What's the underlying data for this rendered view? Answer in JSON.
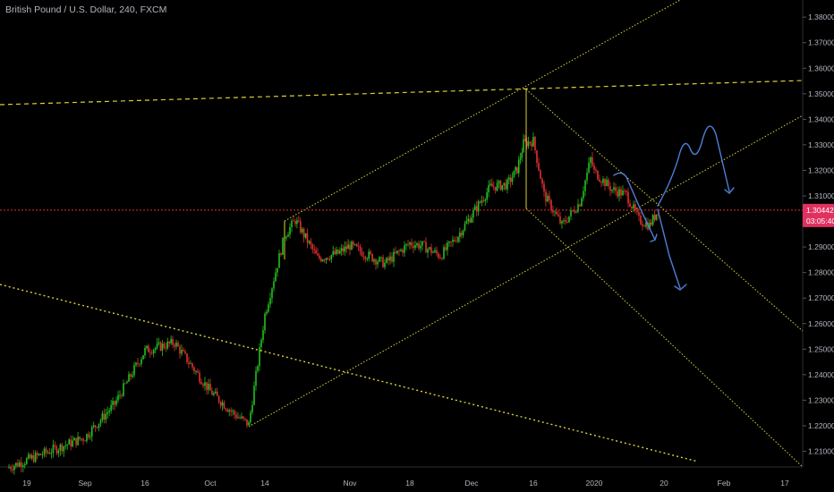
{
  "header": {
    "symbol_title": "British Pound / U.S. Dollar, 240, FXCM"
  },
  "colors": {
    "background": "#000000",
    "up_candle": "#22c11f",
    "down_candle": "#e0312f",
    "trendline": "#d8d23a",
    "projection": "#4f7fd6",
    "price_line": "#e0312f",
    "price_tag": "#e0315f"
  },
  "price_tag": {
    "price": "1.30442",
    "countdown": "03:05:40"
  },
  "chart_data": {
    "type": "candlestick",
    "timeframe": "240",
    "x_tick_labels": [
      "19",
      "Sep",
      "16",
      "Oct",
      "14",
      "Nov",
      "18",
      "Dec",
      "16",
      "2020",
      "20",
      "Feb",
      "17"
    ],
    "y_tick_labels": [
      "1.21000",
      "1.22000",
      "1.23000",
      "1.24000",
      "1.25000",
      "1.26000",
      "1.27000",
      "1.28000",
      "1.29000",
      "1.30000",
      "1.31000",
      "1.32000",
      "1.33000",
      "1.34000",
      "1.35000",
      "1.36000",
      "1.37000",
      "1.38000"
    ],
    "ylim": [
      1.2,
      1.385
    ],
    "grid": false,
    "current_price": 1.30442,
    "price_path_close": [
      [
        "19",
        1.2035
      ],
      [
        "Sep",
        1.2155
      ],
      [
        "7 Sep",
        1.2285
      ],
      [
        "16",
        1.2495
      ],
      [
        "19 Sep",
        1.2525
      ],
      [
        "Oct",
        1.2335
      ],
      [
        "8 Oct",
        1.2245
      ],
      [
        "10 Oct",
        1.2205
      ],
      [
        "14",
        1.2635
      ],
      [
        "17 Oct",
        1.2945
      ],
      [
        "21 Oct",
        1.3005
      ],
      [
        "25 Oct",
        1.2855
      ],
      [
        "28 Oct",
        1.2875
      ],
      [
        "Nov",
        1.2905
      ],
      [
        "6 Nov",
        1.2855
      ],
      [
        "11 Nov",
        1.2835
      ],
      [
        "18",
        1.2915
      ],
      [
        "21 Nov",
        1.2905
      ],
      [
        "25 Nov",
        1.2865
      ],
      [
        "29 Nov",
        1.2945
      ],
      [
        "Dec",
        1.3025
      ],
      [
        "5 Dec",
        1.3135
      ],
      [
        "9 Dec",
        1.3145
      ],
      [
        "12 Dec",
        1.3205
      ],
      [
        "13 Dec",
        1.3305
      ],
      [
        "16",
        1.3315
      ],
      [
        "18 Dec",
        1.3105
      ],
      [
        "23 Dec",
        1.2985
      ],
      [
        "27 Dec",
        1.3075
      ],
      [
        "31 Dec",
        1.3245
      ],
      [
        "2020",
        1.3195
      ],
      [
        "6 Jan",
        1.3125
      ],
      [
        "9 Jan",
        1.3105
      ],
      [
        "13 Jan",
        1.3005
      ],
      [
        "17 Jan",
        1.2985
      ],
      [
        "20",
        1.3044
      ]
    ],
    "drawings": [
      {
        "name": "ascending channel",
        "style": "dotted"
      },
      {
        "name": "descending channel",
        "style": "dotted"
      },
      {
        "name": "horizontal resistance",
        "style": "dashed"
      },
      {
        "name": "long-term downtrend line",
        "style": "dotted"
      },
      {
        "name": "bearish projection",
        "style": "freehand arrow"
      },
      {
        "name": "bullish projection",
        "style": "freehand arrow"
      }
    ]
  }
}
